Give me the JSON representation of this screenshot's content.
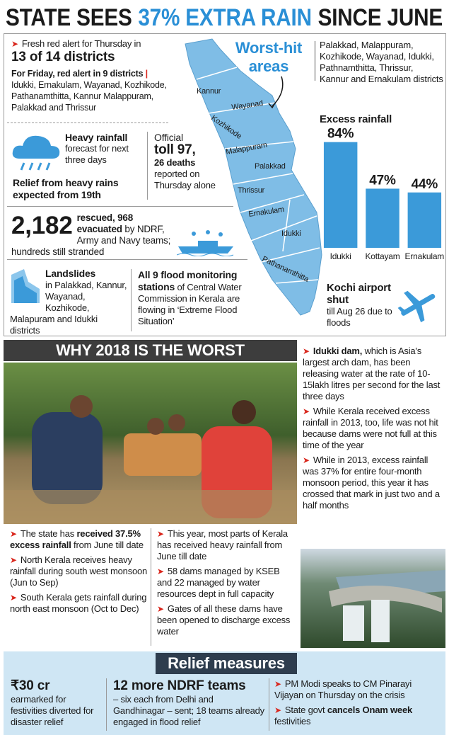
{
  "header": {
    "title_a": "STATE SEES",
    "title_b": "37% EXTRA RAIN",
    "title_c": "SINCE JUNE"
  },
  "alerts": {
    "thursday_text": "Fresh red alert for Thursday in",
    "thursday_bold": "13 of 14 districts",
    "friday_bold": "For Friday, red alert in 9 districts",
    "friday_districts": "Idukki, Ernakulam, Wayanad, Kozhikode, Pathanamthitta, Kannur Malappuram, Palakkad and Thrissur"
  },
  "forecast": {
    "bold": "Heavy rainfall",
    "text": "forecast for next three days",
    "relief": "Relief from heavy rains expected from 19th"
  },
  "toll": {
    "label": "Official",
    "bold": "toll 97,",
    "deaths": "26 deaths",
    "text": "reported on Thursday alone"
  },
  "rescue": {
    "number": "2,182",
    "bold": "rescued, 968 evacuated",
    "text": "by NDRF, Army and Navy teams; hundreds still stranded"
  },
  "landslides": {
    "bold": "Landslides",
    "text": "in Palakkad, Kannur, Wayanad, Kozhikode, Malapuram and Idukki districts"
  },
  "flood_stations": {
    "bold": "All 9 flood monitoring stations",
    "text": "of Central Water Commission in Kerala are flowing in ‘Extreme Flood Situation’"
  },
  "map": {
    "callout": "Worst-hit areas",
    "districts": [
      "Kannur",
      "Wayanad",
      "Kozhikode",
      "Malappuram",
      "Palakkad",
      "Thrissur",
      "Ernakulam",
      "Idukki",
      "Pathanamthitta"
    ],
    "worst_hit_list": "Palakkad, Malappuram, Kozhikode, Wayanad, Idukki, Pathnamthitta, Thrissur, Kannur and Ernakulam districts"
  },
  "chart_data": {
    "type": "bar",
    "title": "Excess rainfall",
    "categories": [
      "Idukki",
      "Kottayam",
      "Ernakulam"
    ],
    "values": [
      84,
      47,
      44
    ],
    "value_labels": [
      "84%",
      "47%",
      "44%"
    ],
    "color": "#3b9ad9",
    "ylim": [
      0,
      90
    ]
  },
  "airport": {
    "bold": "Kochi airport shut",
    "text": "till Aug 26 due to floods"
  },
  "worst": {
    "heading": "WHY 2018 IS THE WORST",
    "right_points": [
      {
        "bold": "Idukki dam,",
        "text": "which is Asia's largest arch dam, has been releasing water at the rate of 10-15lakh litres per second for the last three days"
      },
      {
        "text": "While Kerala received excess rainfall in 2013, too, life was not hit because dams were not full at this time of the year"
      },
      {
        "text": "While in 2013, excess rainfall was 37% for entire four-month monsoon period, this year it has crossed that mark in just two and a half months"
      }
    ],
    "left_points": [
      {
        "a": "The state has",
        "bold": "received 37.5% excess rainfall",
        "b": "from June till date"
      },
      {
        "text": "North Kerala receives heavy rainfall during south west monsoon (Jun to Sep)"
      },
      {
        "text": "South Kerala gets rainfall during north east monsoon (Oct to Dec)"
      }
    ],
    "middle_points": [
      {
        "text": "This year, most parts of Kerala has received heavy rainfall from June till date"
      },
      {
        "text": "58 dams managed by KSEB and 22 managed by water resources dept in full capacity"
      },
      {
        "text": "Gates of all these dams have been opened to discharge excess water"
      }
    ]
  },
  "relief": {
    "heading": "Relief measures",
    "funds_bold": "₹30 cr",
    "funds_text": "earmarked for festivities diverted for disaster relief",
    "ndrf_bold": "12 more NDRF teams",
    "ndrf_text": "– six each from Delhi and Gandhinagar – sent; 18 teams already engaged in flood relief",
    "points": [
      {
        "text": "PM Modi speaks to CM Pinarayi Vijayan on Thursday on the crisis"
      },
      {
        "a": "State govt",
        "bold": "cancels Onam week",
        "b": "festivities"
      }
    ]
  }
}
